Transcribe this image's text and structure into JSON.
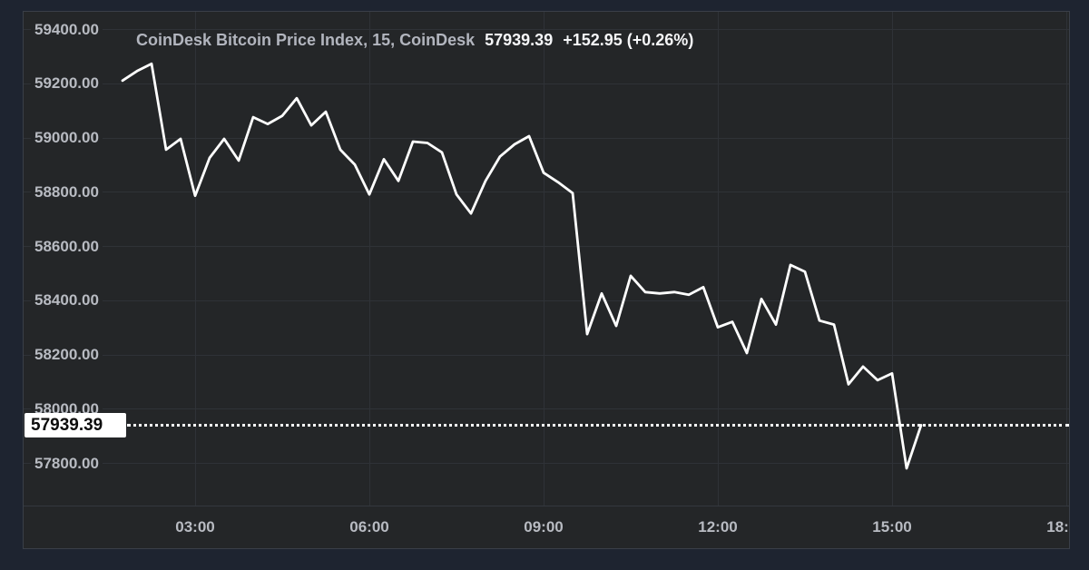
{
  "colors": {
    "page_background": "#1e2430",
    "panel_background": "#242628",
    "grid": "#2f3237",
    "separator": "#34383e",
    "panel_border": "#3a3f48",
    "axis_text": "#b8bbc2",
    "legend_text": "#b2b5be",
    "value_text": "#f5f6f8",
    "line": "#ffffff",
    "price_label_bg": "#ffffff",
    "price_label_text": "#0d0d0d"
  },
  "header": {
    "title": "CoinDesk Bitcoin Price Index, 15, CoinDesk",
    "price": "57939.39",
    "change": "+152.95 (+0.26%)"
  },
  "y_axis": {
    "labels": [
      "59400.00",
      "59200.00",
      "59000.00",
      "58800.00",
      "58600.00",
      "58400.00",
      "58200.00",
      "58000.00",
      "57800.00"
    ]
  },
  "x_axis": {
    "labels": [
      "03:00",
      "06:00",
      "09:00",
      "12:00",
      "15:00",
      "18:00"
    ]
  },
  "price_marker": {
    "label": "57939.39"
  },
  "chart_data": {
    "type": "line",
    "title": "CoinDesk Bitcoin Price Index, 15, CoinDesk",
    "interval": "15",
    "source": "CoinDesk",
    "current_price": 57939.39,
    "change": 152.95,
    "change_pct": 0.26,
    "line_color": "#ffffff",
    "grid": true,
    "legend_position": "top-left",
    "y_ticks": [
      59400,
      59200,
      59000,
      58800,
      58600,
      58400,
      58200,
      58000,
      57800
    ],
    "x_ticks": [
      "03:00",
      "06:00",
      "09:00",
      "12:00",
      "15:00",
      "18:00"
    ],
    "ylim": [
      57800,
      59400
    ],
    "x": [
      "01:45",
      "02:00",
      "02:15",
      "02:30",
      "02:45",
      "03:00",
      "03:15",
      "03:30",
      "03:45",
      "04:00",
      "04:15",
      "04:30",
      "04:45",
      "05:00",
      "05:15",
      "05:30",
      "05:45",
      "06:00",
      "06:15",
      "06:30",
      "06:45",
      "07:00",
      "07:15",
      "07:30",
      "07:45",
      "08:00",
      "08:15",
      "08:30",
      "08:45",
      "09:00",
      "09:15",
      "09:30",
      "09:45",
      "10:00",
      "10:15",
      "10:30",
      "10:45",
      "11:00",
      "11:15",
      "11:30",
      "11:45",
      "12:00",
      "12:15",
      "12:30",
      "12:45",
      "13:00",
      "13:15",
      "13:30",
      "13:45",
      "14:00",
      "14:15",
      "14:30",
      "14:45",
      "15:00",
      "15:15",
      "15:30"
    ],
    "series": [
      {
        "name": "CoinDesk Bitcoin Price Index",
        "values": [
          59210,
          59245,
          59272,
          58955,
          58995,
          58785,
          58925,
          58995,
          58915,
          59075,
          59050,
          59080,
          59145,
          59045,
          59095,
          58955,
          58900,
          58790,
          58920,
          58840,
          58985,
          58980,
          58945,
          58790,
          58720,
          58840,
          58930,
          58975,
          59005,
          58870,
          58835,
          58795,
          58275,
          58425,
          58305,
          58490,
          58430,
          58425,
          58430,
          58420,
          58448,
          58300,
          58320,
          58205,
          58405,
          58310,
          58530,
          58505,
          58325,
          58310,
          58090,
          58155,
          58105,
          58130,
          57780,
          57939.39
        ]
      }
    ]
  }
}
